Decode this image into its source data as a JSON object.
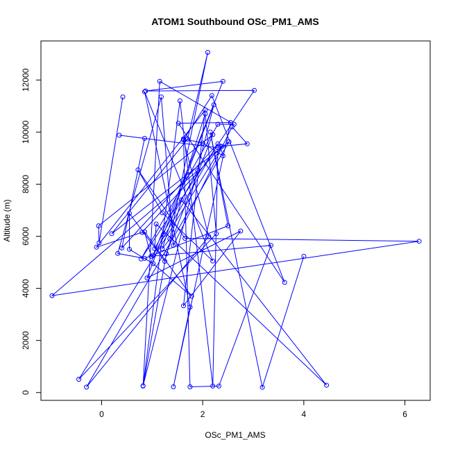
{
  "chart_data": {
    "type": "scatter",
    "title": "ATOM1 Southbound OSc_PM1_AMS",
    "xlabel": "OSc_PM1_AMS",
    "ylabel": "Altitude (m)",
    "xlim": [
      -1.2,
      6.5
    ],
    "ylim": [
      -300,
      13500
    ],
    "xticks": [
      0,
      2,
      4,
      6
    ],
    "yticks": [
      0,
      2000,
      4000,
      6000,
      8000,
      10000,
      12000
    ],
    "x_tick_labels": [
      "0",
      "2",
      "4",
      "6"
    ],
    "y_tick_labels": [
      "0",
      "2000",
      "4000",
      "6000",
      "8000",
      "10000",
      "12000"
    ],
    "grid": false,
    "legend": "none",
    "color": "#0000ff",
    "series": [
      {
        "points": [
          [
            0.42,
            11350
          ],
          [
            -0.05,
            5750
          ],
          [
            -0.06,
            6400
          ],
          [
            2.2,
            9900
          ],
          [
            1.28,
            5330
          ],
          [
            0.82,
            250
          ],
          [
            1.55,
            11200
          ],
          [
            2.2,
            250
          ],
          [
            2.3,
            9400
          ],
          [
            0.35,
            9880
          ],
          [
            0.85,
            9760
          ],
          [
            0.4,
            5550
          ],
          [
            2.3,
            9550
          ],
          [
            1.02,
            5270
          ],
          [
            2.4,
            11950
          ],
          [
            0.87,
            11580
          ],
          [
            3.02,
            11600
          ],
          [
            0.78,
            5130
          ],
          [
            2.3,
            10300
          ],
          [
            2.62,
            10300
          ],
          [
            1.15,
            11950
          ],
          [
            0.82,
            260
          ],
          [
            2.22,
            11050
          ],
          [
            1.22,
            6050
          ],
          [
            0.9,
            4400
          ],
          [
            2.75,
            6200
          ],
          [
            1.62,
            3330
          ],
          [
            2.05,
            10850
          ],
          [
            -0.1,
            5580
          ],
          [
            0.8,
            6150
          ],
          [
            2.38,
            9450
          ],
          [
            -0.45,
            510
          ],
          [
            2.27,
            6100
          ],
          [
            2.05,
            10700
          ],
          [
            1.2,
            5520
          ],
          [
            1.35,
            5900
          ],
          [
            2.1,
            13060
          ],
          [
            1.7,
            9730
          ],
          [
            0.2,
            6100
          ],
          [
            2.52,
            9630
          ],
          [
            -0.3,
            210
          ],
          [
            2.12,
            5990
          ],
          [
            1.62,
            9700
          ],
          [
            2.18,
            11400
          ],
          [
            3.62,
            4230
          ],
          [
            1.52,
            10340
          ],
          [
            2.55,
            10370
          ],
          [
            1.42,
            220
          ],
          [
            1.75,
            3280
          ],
          [
            0.85,
            11550
          ],
          [
            2.2,
            5050
          ],
          [
            1.2,
            6900
          ],
          [
            0.72,
            8550
          ],
          [
            1.65,
            5920
          ],
          [
            6.28,
            5810
          ],
          [
            -0.98,
            3720
          ],
          [
            1.9,
            8520
          ],
          [
            1.05,
            5520
          ],
          [
            1.08,
            6470
          ],
          [
            4.45,
            280
          ],
          [
            1.58,
            7400
          ],
          [
            1.25,
            5040
          ],
          [
            0.55,
            6880
          ],
          [
            0.55,
            5500
          ],
          [
            1.02,
            4950
          ],
          [
            1.78,
            3700
          ],
          [
            0.85,
            6170
          ],
          [
            0.98,
            5230
          ],
          [
            3.35,
            5650
          ],
          [
            2.32,
            250
          ],
          [
            1.75,
            220
          ],
          [
            1.62,
            9740
          ],
          [
            2.0,
            9580
          ],
          [
            2.4,
            9090
          ],
          [
            2.35,
            9450
          ],
          [
            2.88,
            9550
          ],
          [
            2.58,
            10200
          ],
          [
            1.42,
            5650
          ],
          [
            1.18,
            11350
          ],
          [
            0.32,
            5340
          ],
          [
            0.85,
            5150
          ],
          [
            2.5,
            6400
          ],
          [
            2.15,
            10000
          ],
          [
            3.18,
            200
          ],
          [
            4.0,
            5230
          ]
        ]
      }
    ]
  }
}
